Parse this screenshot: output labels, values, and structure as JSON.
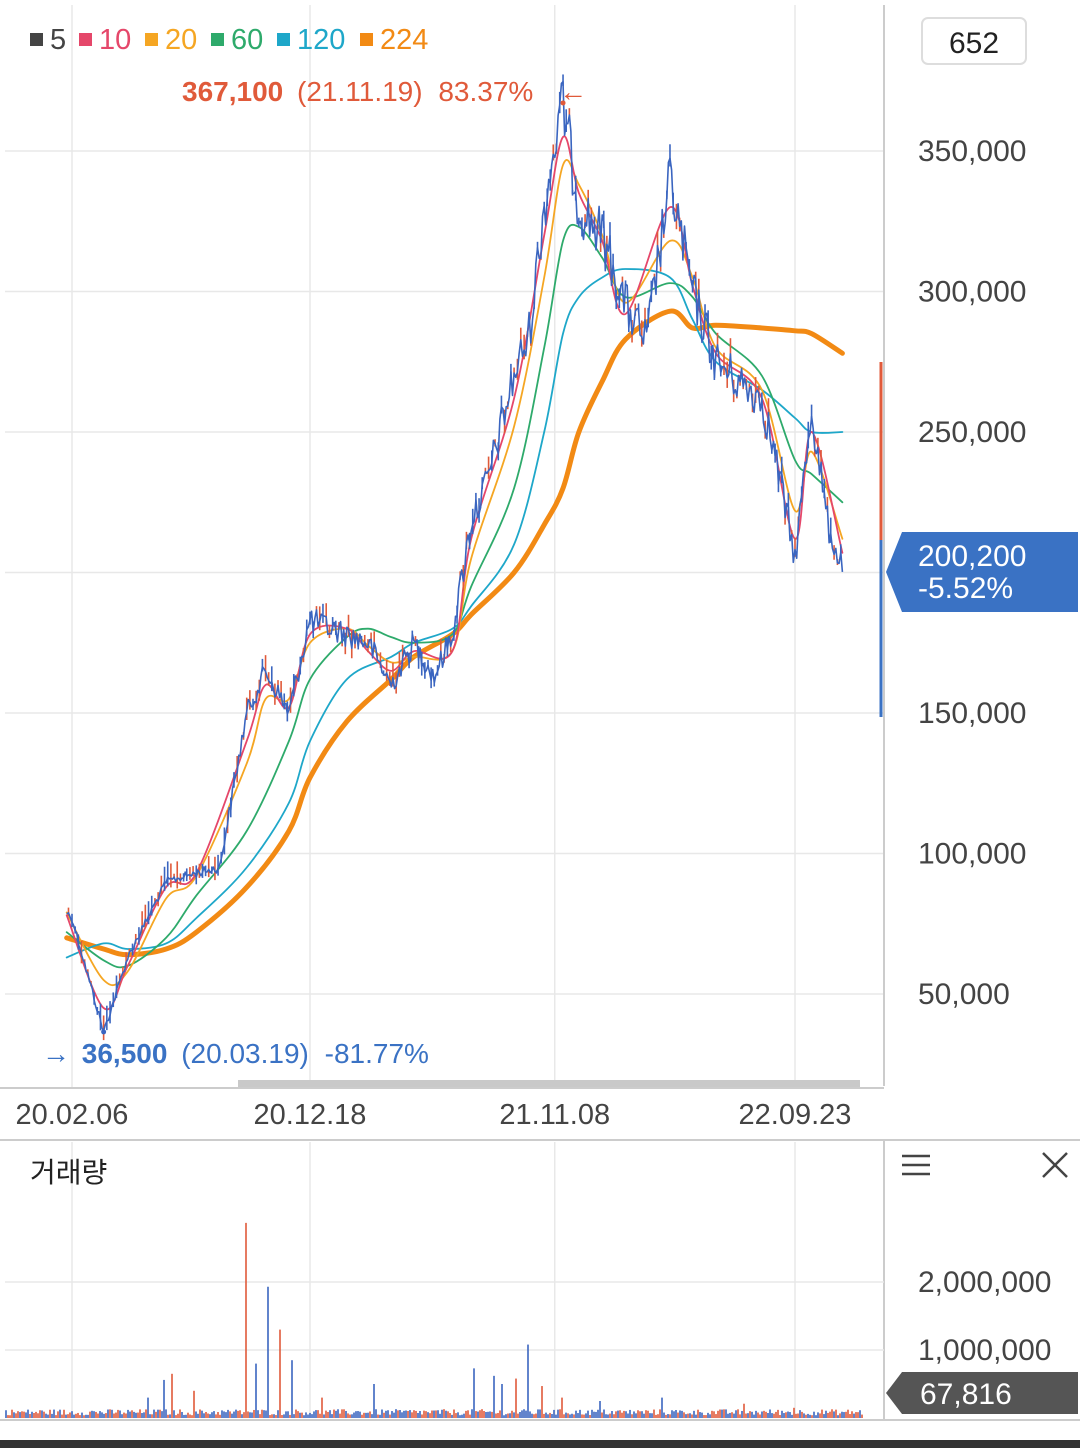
{
  "legend": [
    {
      "label": "5",
      "color": "#444444"
    },
    {
      "label": "10",
      "color": "#e5476a"
    },
    {
      "label": "20",
      "color": "#f5a623"
    },
    {
      "label": "60",
      "color": "#2eaa6b"
    },
    {
      "label": "120",
      "color": "#1ea7c9"
    },
    {
      "label": "224",
      "color": "#f28a14"
    }
  ],
  "count_box": "652",
  "high_marker": {
    "arrow": "←",
    "value": "367,100",
    "date": "(21.11.19)",
    "pct": "83.37%",
    "color": "#e05a3a"
  },
  "low_marker": {
    "arrow": "→",
    "value": "36,500",
    "date": "(20.03.19)",
    "pct": "-81.77%",
    "color": "#3a72c4"
  },
  "current_price": {
    "value": "200,200",
    "change": "-5.52%",
    "color": "#3a72c4"
  },
  "volume_panel": {
    "title": "거래량",
    "current": "67,816",
    "menu_icon": "hamburger-menu-icon",
    "close_icon": "close-icon"
  },
  "chart_data": [
    {
      "type": "line",
      "title": "",
      "x_ticks": [
        "20.02.06",
        "20.12.18",
        "21.11.08",
        "22.09.23"
      ],
      "y_ticks": [
        "350,000",
        "300,000",
        "250,000",
        "200,000",
        "150,000",
        "100,000",
        "50,000"
      ],
      "y_tick_values": [
        350000,
        300000,
        250000,
        200000,
        150000,
        100000,
        50000
      ],
      "ylim": [
        20000,
        380000
      ],
      "grid": true,
      "legend_position": "top-left",
      "series": [
        {
          "name": "5",
          "color": "#3a65c0",
          "kind": "price",
          "dates": [
            "20.01.30",
            "20.02.06",
            "20.03.19",
            "20.04.20",
            "20.06.10",
            "20.07.20",
            "20.08.20",
            "20.09.25",
            "20.10.20",
            "20.11.20",
            "20.12.18",
            "21.01.15",
            "21.02.05",
            "21.03.05",
            "21.04.05",
            "21.05.05",
            "21.06.01",
            "21.06.25",
            "21.07.20",
            "21.08.10",
            "21.08.25",
            "21.09.15",
            "21.10.05",
            "21.10.25",
            "21.11.08",
            "21.11.19",
            "21.12.10",
            "22.01.10",
            "22.02.10",
            "22.03.10",
            "22.04.10",
            "22.05.10",
            "22.06.10",
            "22.07.10",
            "22.08.10",
            "22.09.01",
            "22.09.23",
            "22.10.15",
            "22.11.05",
            "22.11.25"
          ],
          "values": [
            79000,
            77000,
            36500,
            63000,
            90000,
            93000,
            95000,
            150000,
            165000,
            150000,
            183000,
            180000,
            178000,
            175000,
            160000,
            175000,
            163000,
            178000,
            218000,
            232000,
            248000,
            270000,
            285000,
            330000,
            352000,
            367100,
            330000,
            320000,
            295000,
            282000,
            340000,
            300000,
            275000,
            268000,
            262000,
            236000,
            205000,
            258000,
            218000,
            200200
          ]
        },
        {
          "name": "10",
          "color": "#e5476a",
          "kind": "ma",
          "dates": [
            "20.01.30",
            "20.03.19",
            "20.04.20",
            "20.06.10",
            "20.07.20",
            "20.09.25",
            "20.10.20",
            "20.11.20",
            "20.12.18",
            "21.02.05",
            "21.03.05",
            "21.04.05",
            "21.05.05",
            "21.06.25",
            "21.07.20",
            "21.09.15",
            "21.10.25",
            "21.11.19",
            "21.12.10",
            "22.01.10",
            "22.02.10",
            "22.04.10",
            "22.05.10",
            "22.06.10",
            "22.08.10",
            "22.09.23",
            "22.10.15",
            "22.11.25"
          ],
          "values": [
            78000,
            45000,
            60000,
            88000,
            93000,
            140000,
            160000,
            152000,
            178000,
            180000,
            172000,
            165000,
            172000,
            172000,
            212000,
            262000,
            320000,
            355000,
            335000,
            318000,
            292000,
            330000,
            302000,
            278000,
            262000,
            212000,
            250000,
            207000
          ]
        },
        {
          "name": "20",
          "color": "#f5a623",
          "kind": "ma",
          "dates": [
            "20.01.30",
            "20.03.19",
            "20.04.20",
            "20.06.10",
            "20.07.20",
            "20.09.25",
            "20.10.20",
            "20.11.20",
            "20.12.18",
            "21.02.05",
            "21.03.05",
            "21.04.05",
            "21.05.05",
            "21.06.25",
            "21.07.20",
            "21.09.15",
            "21.10.25",
            "21.11.19",
            "21.12.10",
            "22.01.10",
            "22.02.10",
            "22.04.10",
            "22.05.10",
            "22.06.10",
            "22.08.10",
            "22.09.23",
            "22.10.15",
            "22.11.25"
          ],
          "values": [
            79000,
            55000,
            58000,
            84000,
            92000,
            132000,
            155000,
            155000,
            175000,
            180000,
            174000,
            168000,
            170000,
            172000,
            205000,
            252000,
            305000,
            345000,
            338000,
            320000,
            296000,
            318000,
            305000,
            280000,
            265000,
            222000,
            243000,
            212000
          ]
        },
        {
          "name": "60",
          "color": "#2eaa6b",
          "kind": "ma",
          "dates": [
            "20.01.30",
            "20.03.19",
            "20.04.20",
            "20.06.10",
            "20.07.20",
            "20.09.25",
            "20.11.20",
            "20.12.18",
            "21.02.05",
            "21.03.05",
            "21.04.05",
            "21.05.05",
            "21.06.25",
            "21.07.20",
            "21.09.15",
            "21.10.25",
            "21.11.19",
            "21.12.10",
            "22.01.10",
            "22.02.10",
            "22.04.10",
            "22.05.10",
            "22.06.10",
            "22.08.10",
            "22.09.23",
            "22.10.15",
            "22.11.25"
          ],
          "values": [
            72000,
            62000,
            60000,
            70000,
            85000,
            108000,
            140000,
            162000,
            177000,
            180000,
            177000,
            175000,
            178000,
            195000,
            230000,
            280000,
            318000,
            323000,
            312000,
            298000,
            303000,
            298000,
            285000,
            270000,
            240000,
            235000,
            225000
          ]
        },
        {
          "name": "120",
          "color": "#1ea7c9",
          "kind": "ma",
          "dates": [
            "20.01.30",
            "20.03.19",
            "20.04.20",
            "20.06.10",
            "20.07.20",
            "20.09.25",
            "20.11.20",
            "20.12.18",
            "21.02.05",
            "21.04.05",
            "21.05.05",
            "21.06.25",
            "21.07.20",
            "21.09.15",
            "21.10.25",
            "21.11.19",
            "21.12.10",
            "22.01.10",
            "22.02.10",
            "22.04.10",
            "22.05.10",
            "22.06.10",
            "22.08.10",
            "22.09.23",
            "22.10.15",
            "22.11.25"
          ],
          "values": [
            63000,
            68000,
            66000,
            68000,
            77000,
            95000,
            118000,
            140000,
            162000,
            170000,
            175000,
            180000,
            188000,
            210000,
            250000,
            285000,
            298000,
            305000,
            308000,
            305000,
            290000,
            275000,
            265000,
            255000,
            250000,
            250000
          ]
        },
        {
          "name": "224",
          "color": "#f28a14",
          "kind": "ma",
          "width": 5,
          "dates": [
            "20.01.30",
            "20.03.19",
            "20.04.20",
            "20.06.10",
            "20.07.20",
            "20.09.25",
            "20.11.20",
            "20.12.18",
            "21.02.05",
            "21.04.05",
            "21.05.05",
            "21.06.25",
            "21.07.20",
            "21.09.15",
            "21.10.25",
            "21.11.19",
            "21.12.10",
            "22.01.10",
            "22.02.10",
            "22.04.10",
            "22.05.10",
            "22.06.10",
            "22.08.10",
            "22.09.23",
            "22.10.15",
            "22.11.25"
          ],
          "values": [
            70000,
            66000,
            64000,
            66000,
            72000,
            88000,
            108000,
            127000,
            147000,
            162000,
            170000,
            178000,
            185000,
            200000,
            217000,
            230000,
            250000,
            268000,
            283000,
            293000,
            287000,
            288000,
            287000,
            286000,
            285000,
            278000
          ]
        }
      ]
    },
    {
      "type": "bar",
      "title": "거래량",
      "y_ticks": [
        "2,000,000",
        "1,000,000"
      ],
      "y_tick_values": [
        2000000,
        1000000
      ],
      "ylim": [
        0,
        3000000
      ],
      "spikes": [
        {
          "date": "20.01.30",
          "value": 50000
        },
        {
          "date": "20.05.20",
          "value": 300000
        },
        {
          "date": "20.06.10",
          "value": 560000
        },
        {
          "date": "20.06.20",
          "value": 650000
        },
        {
          "date": "20.07.20",
          "value": 400000
        },
        {
          "date": "20.09.25",
          "value": 2870000
        },
        {
          "date": "20.10.10",
          "value": 800000
        },
        {
          "date": "20.10.25",
          "value": 1930000
        },
        {
          "date": "20.11.10",
          "value": 1300000
        },
        {
          "date": "20.11.25",
          "value": 850000
        },
        {
          "date": "21.01.05",
          "value": 300000
        },
        {
          "date": "21.03.15",
          "value": 500000
        },
        {
          "date": "21.07.25",
          "value": 730000
        },
        {
          "date": "21.08.20",
          "value": 620000
        },
        {
          "date": "21.09.01",
          "value": 500000
        },
        {
          "date": "21.09.20",
          "value": 580000
        },
        {
          "date": "21.10.05",
          "value": 1080000
        },
        {
          "date": "21.10.25",
          "value": 470000
        },
        {
          "date": "21.11.20",
          "value": 300000
        },
        {
          "date": "22.01.10",
          "value": 250000
        },
        {
          "date": "22.04.01",
          "value": 300000
        },
        {
          "date": "22.07.20",
          "value": 210000
        },
        {
          "date": "22.09.23",
          "value": 150000
        },
        {
          "date": "22.11.25",
          "value": 67816
        }
      ]
    }
  ],
  "colors": {
    "up": "#e05a3a",
    "down": "#3a65c0",
    "grid": "#e8e8e8",
    "axis": "#cccccc",
    "text": "#444444"
  }
}
